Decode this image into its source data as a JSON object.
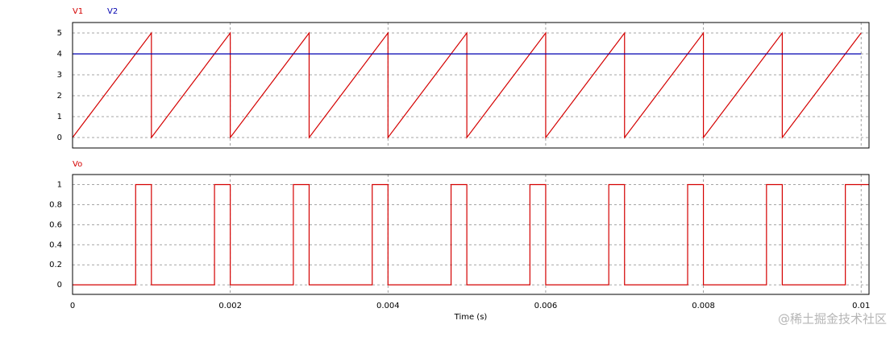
{
  "chart_data": [
    {
      "type": "line",
      "x": [
        0,
        0.001,
        0.001,
        0.002,
        0.002,
        0.003,
        0.003,
        0.004,
        0.004,
        0.005,
        0.005,
        0.006,
        0.006,
        0.007,
        0.007,
        0.008,
        0.008,
        0.009,
        0.009,
        0.01
      ],
      "series": [
        {
          "name": "V1",
          "color": "#d40000",
          "values": [
            0,
            5,
            0,
            5,
            0,
            5,
            0,
            5,
            0,
            5,
            0,
            5,
            0,
            5,
            0,
            5,
            0,
            5,
            0,
            5
          ]
        },
        {
          "name": "V2",
          "color": "#0000b0",
          "values": [
            4,
            4,
            4,
            4,
            4,
            4,
            4,
            4,
            4,
            4,
            4,
            4,
            4,
            4,
            4,
            4,
            4,
            4,
            4,
            4
          ]
        }
      ],
      "xlim": [
        0,
        0.0101
      ],
      "xticks": [
        0,
        0.002,
        0.004,
        0.006,
        0.008,
        0.01
      ],
      "show_xtick_labels": false,
      "ylim": [
        -0.5,
        5.5
      ],
      "yticks": [
        0,
        1,
        2,
        3,
        4,
        5
      ],
      "grid": true
    },
    {
      "type": "line",
      "x": [
        0,
        0.0008,
        0.0008,
        0.001,
        0.001,
        0.0018,
        0.0018,
        0.002,
        0.002,
        0.0028,
        0.0028,
        0.003,
        0.003,
        0.0038,
        0.0038,
        0.004,
        0.004,
        0.0048,
        0.0048,
        0.005,
        0.005,
        0.0058,
        0.0058,
        0.006,
        0.006,
        0.0068,
        0.0068,
        0.007,
        0.007,
        0.0078,
        0.0078,
        0.008,
        0.008,
        0.0088,
        0.0088,
        0.009,
        0.009,
        0.0098,
        0.0098,
        0.0101
      ],
      "series": [
        {
          "name": "Vo",
          "color": "#d40000",
          "values": [
            0,
            0,
            1,
            1,
            0,
            0,
            1,
            1,
            0,
            0,
            1,
            1,
            0,
            0,
            1,
            1,
            0,
            0,
            1,
            1,
            0,
            0,
            1,
            1,
            0,
            0,
            1,
            1,
            0,
            0,
            1,
            1,
            0,
            0,
            1,
            1,
            0,
            0,
            1,
            1
          ]
        }
      ],
      "x_label": "Time (s)",
      "xlim": [
        0,
        0.0101
      ],
      "xticks": [
        0,
        0.002,
        0.004,
        0.006,
        0.008,
        0.01
      ],
      "show_xtick_labels": true,
      "ylim": [
        -0.095,
        1.1
      ],
      "yticks": [
        0,
        0.2,
        0.4,
        0.6,
        0.8,
        1
      ],
      "grid": true
    }
  ],
  "watermark": "@稀土掘金技术社区"
}
